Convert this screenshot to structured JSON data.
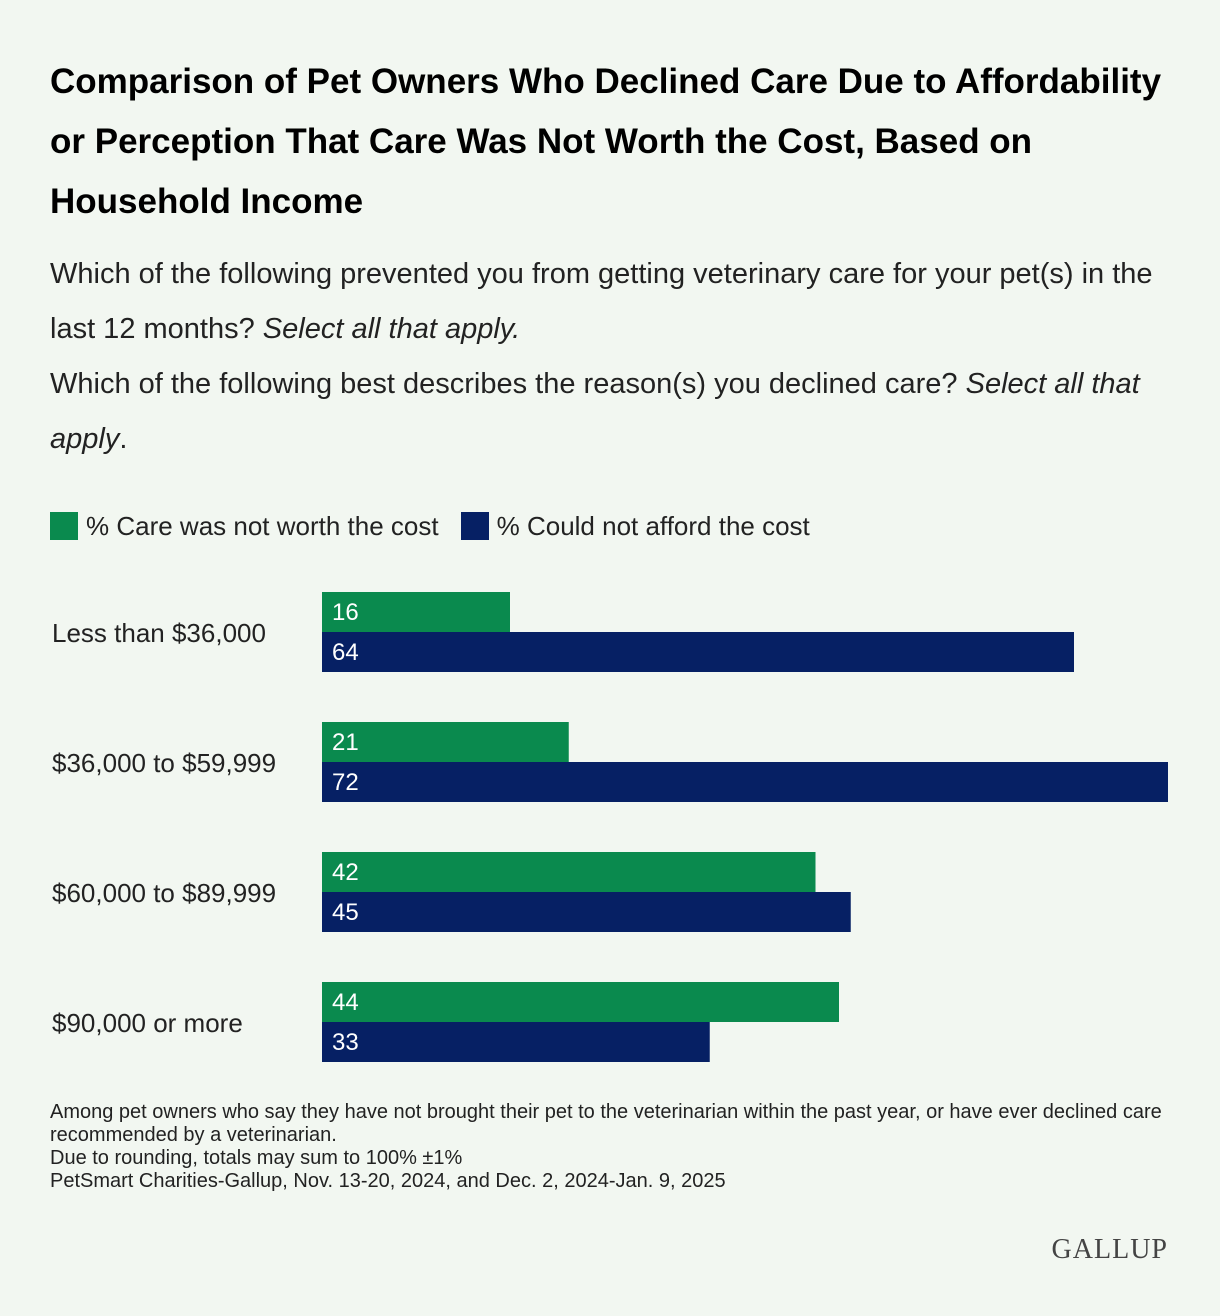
{
  "title": "Comparison of Pet Owners Who Declined Care Due to Affordability or Perception That Care Was Not Worth the Cost, Based on Household Income",
  "questions": [
    {
      "text": "Which of the following prevented you from getting veterinary care for your pet(s) in the last 12 months? ",
      "italic": "Select all that apply."
    },
    {
      "text": "Which of the following best describes the reason(s) you declined care? ",
      "italic": "Select all that apply",
      "tail": "."
    }
  ],
  "colors": {
    "green": "#0a8a4e",
    "navy": "#062064"
  },
  "chart_data": {
    "type": "bar",
    "orientation": "horizontal",
    "categories": [
      "Less than $36,000",
      "$36,000 to $59,999",
      "$60,000 to $89,999",
      "$90,000 or more"
    ],
    "series": [
      {
        "name": "% Care was not worth the cost",
        "color": "#0a8a4e",
        "values": [
          16,
          21,
          42,
          44
        ]
      },
      {
        "name": "% Could not afford the cost",
        "color": "#062064",
        "values": [
          64,
          72,
          45,
          33
        ]
      }
    ],
    "xlim": [
      0,
      72
    ],
    "legend": "top-left",
    "grid": false
  },
  "footnotes": [
    "Among pet owners who say they have not brought their pet to the veterinarian within the past year, or have ever declined care recommended by a veterinarian.",
    "Due to rounding, totals may sum to 100% ±1%",
    "PetSmart Charities-Gallup, Nov. 13-20, 2024, and Dec. 2, 2024-Jan. 9, 2025"
  ],
  "logo": "GALLUP"
}
